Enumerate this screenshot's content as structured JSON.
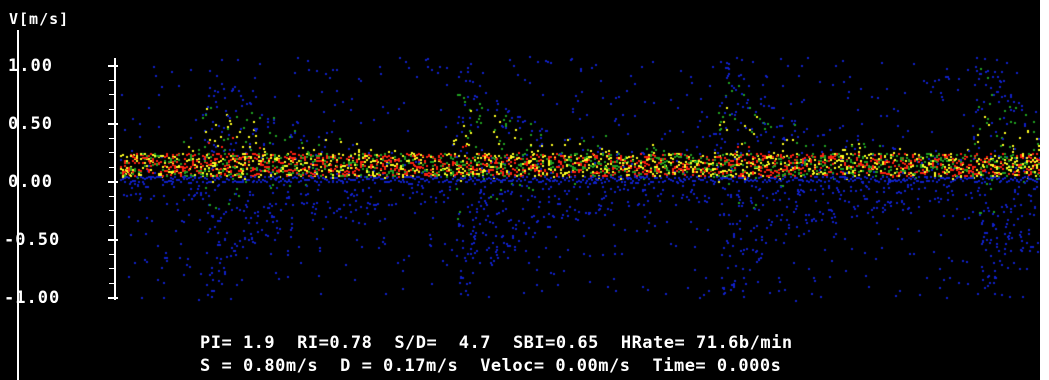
{
  "axis": {
    "unit_label": "V[m/s]",
    "ticks": [
      {
        "label": "1.00",
        "value": 1.0
      },
      {
        "label": "0.50",
        "value": 0.5
      },
      {
        "label": "0.00",
        "value": 0.0
      },
      {
        "label": "-0.50",
        "value": -0.5
      },
      {
        "label": "-1.00",
        "value": -1.0
      }
    ]
  },
  "readouts": {
    "pi": "PI= 1.9",
    "ri": "RI=0.78",
    "sd": "S/D=  4.7",
    "sbi": "SBI=0.65",
    "hrate": "HRate= 71.6b/min",
    "s": "S = 0.80m/s",
    "d": "D = 0.17m/s",
    "veloc": "Veloc= 0.00m/s",
    "time": "Time= 0.000s"
  },
  "colors": {
    "background": "#000000",
    "low": "#1020c8",
    "mid": "#20a020",
    "high": "#ffff20",
    "peak": "#ff2010"
  }
}
